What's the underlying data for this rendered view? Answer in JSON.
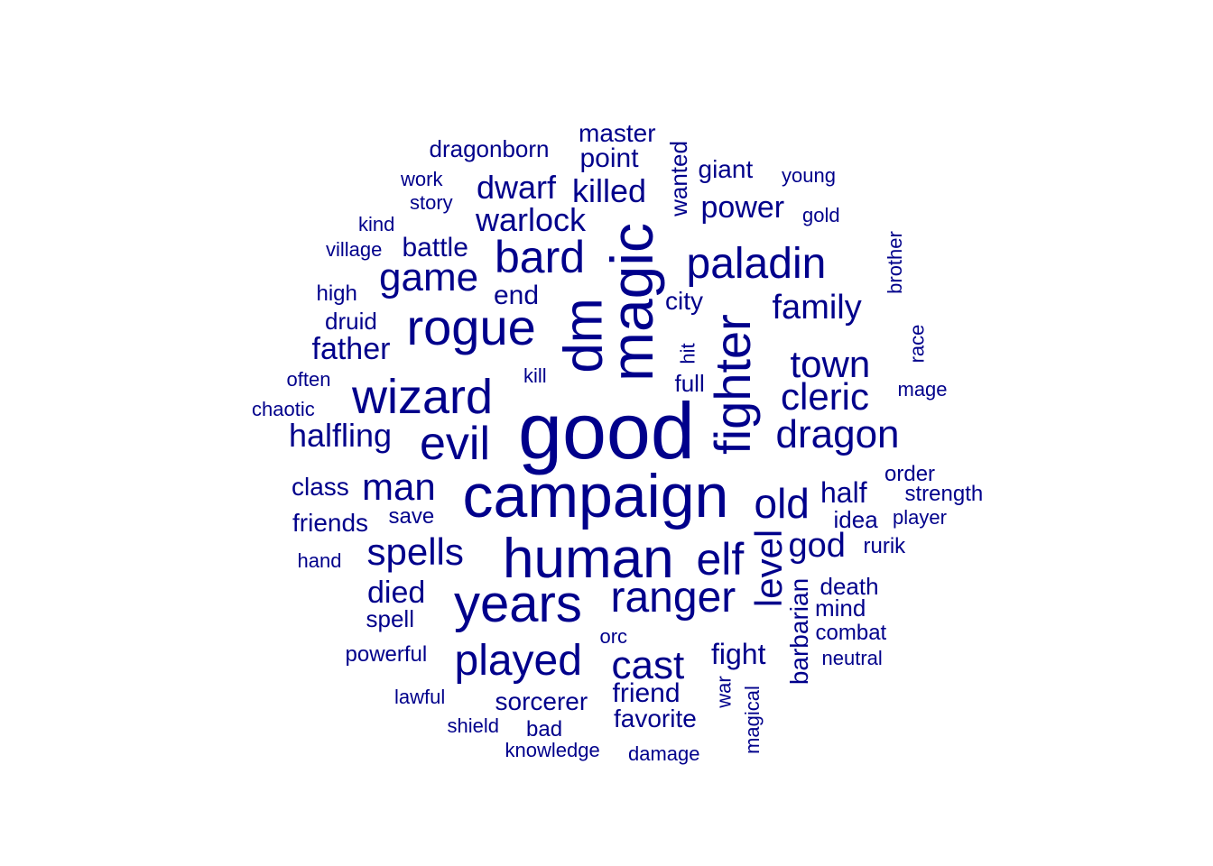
{
  "text_color": "#00008B",
  "background_color": "#FFFFFF",
  "words": [
    {
      "text": "good",
      "weight": 88,
      "rotated": false
    },
    {
      "text": "campaign",
      "weight": 68,
      "rotated": false
    },
    {
      "text": "magic",
      "weight": 66,
      "rotated": true
    },
    {
      "text": "dm",
      "weight": 60,
      "rotated": true
    },
    {
      "text": "human",
      "weight": 62,
      "rotated": false
    },
    {
      "text": "fighter",
      "weight": 56,
      "rotated": true
    },
    {
      "text": "rogue",
      "weight": 56,
      "rotated": false
    },
    {
      "text": "years",
      "weight": 58,
      "rotated": false
    },
    {
      "text": "wizard",
      "weight": 54,
      "rotated": false
    },
    {
      "text": "evil",
      "weight": 52,
      "rotated": false
    },
    {
      "text": "played",
      "weight": 48,
      "rotated": false
    },
    {
      "text": "ranger",
      "weight": 48,
      "rotated": false
    },
    {
      "text": "bard",
      "weight": 50,
      "rotated": false
    },
    {
      "text": "paladin",
      "weight": 48,
      "rotated": false
    },
    {
      "text": "elf",
      "weight": 50,
      "rotated": false
    },
    {
      "text": "game",
      "weight": 44,
      "rotated": false
    },
    {
      "text": "spells",
      "weight": 42,
      "rotated": false
    },
    {
      "text": "dragon",
      "weight": 44,
      "rotated": false
    },
    {
      "text": "old",
      "weight": 46,
      "rotated": false
    },
    {
      "text": "man",
      "weight": 42,
      "rotated": false
    },
    {
      "text": "cast",
      "weight": 44,
      "rotated": false
    },
    {
      "text": "level",
      "weight": 42,
      "rotated": true
    },
    {
      "text": "town",
      "weight": 42,
      "rotated": false
    },
    {
      "text": "cleric",
      "weight": 42,
      "rotated": false
    },
    {
      "text": "family",
      "weight": 38,
      "rotated": false
    },
    {
      "text": "god",
      "weight": 38,
      "rotated": false
    },
    {
      "text": "killed",
      "weight": 36,
      "rotated": false
    },
    {
      "text": "warlock",
      "weight": 36,
      "rotated": false
    },
    {
      "text": "dwarf",
      "weight": 36,
      "rotated": false
    },
    {
      "text": "power",
      "weight": 34,
      "rotated": false
    },
    {
      "text": "halfling",
      "weight": 36,
      "rotated": false
    },
    {
      "text": "father",
      "weight": 34,
      "rotated": false
    },
    {
      "text": "died",
      "weight": 34,
      "rotated": false
    },
    {
      "text": "half",
      "weight": 32,
      "rotated": false
    },
    {
      "text": "fight",
      "weight": 32,
      "rotated": false
    },
    {
      "text": "barbarian",
      "weight": 28,
      "rotated": true
    },
    {
      "text": "battle",
      "weight": 30,
      "rotated": false
    },
    {
      "text": "end",
      "weight": 30,
      "rotated": false
    },
    {
      "text": "sorcerer",
      "weight": 28,
      "rotated": false
    },
    {
      "text": "friend",
      "weight": 30,
      "rotated": false
    },
    {
      "text": "favorite",
      "weight": 28,
      "rotated": false
    },
    {
      "text": "friends",
      "weight": 28,
      "rotated": false
    },
    {
      "text": "class",
      "weight": 28,
      "rotated": false
    },
    {
      "text": "point",
      "weight": 30,
      "rotated": false
    },
    {
      "text": "master",
      "weight": 28,
      "rotated": false
    },
    {
      "text": "dragonborn",
      "weight": 26,
      "rotated": false
    },
    {
      "text": "giant",
      "weight": 28,
      "rotated": false
    },
    {
      "text": "wanted",
      "weight": 26,
      "rotated": true
    },
    {
      "text": "city",
      "weight": 28,
      "rotated": false
    },
    {
      "text": "full",
      "weight": 26,
      "rotated": false
    },
    {
      "text": "idea",
      "weight": 26,
      "rotated": false
    },
    {
      "text": "death",
      "weight": 26,
      "rotated": false
    },
    {
      "text": "mind",
      "weight": 26,
      "rotated": false
    },
    {
      "text": "spell",
      "weight": 26,
      "rotated": false
    },
    {
      "text": "save",
      "weight": 24,
      "rotated": false
    },
    {
      "text": "high",
      "weight": 24,
      "rotated": false
    },
    {
      "text": "druid",
      "weight": 26,
      "rotated": false
    },
    {
      "text": "order",
      "weight": 24,
      "rotated": false
    },
    {
      "text": "strength",
      "weight": 24,
      "rotated": false
    },
    {
      "text": "player",
      "weight": 22,
      "rotated": false
    },
    {
      "text": "rurik",
      "weight": 24,
      "rotated": false
    },
    {
      "text": "combat",
      "weight": 24,
      "rotated": false
    },
    {
      "text": "neutral",
      "weight": 22,
      "rotated": false
    },
    {
      "text": "mage",
      "weight": 22,
      "rotated": false
    },
    {
      "text": "brother",
      "weight": 22,
      "rotated": true
    },
    {
      "text": "race",
      "weight": 22,
      "rotated": true
    },
    {
      "text": "hit",
      "weight": 22,
      "rotated": true
    },
    {
      "text": "kill",
      "weight": 22,
      "rotated": false
    },
    {
      "text": "often",
      "weight": 22,
      "rotated": false
    },
    {
      "text": "chaotic",
      "weight": 22,
      "rotated": false
    },
    {
      "text": "hand",
      "weight": 22,
      "rotated": false
    },
    {
      "text": "powerful",
      "weight": 24,
      "rotated": false
    },
    {
      "text": "lawful",
      "weight": 22,
      "rotated": false
    },
    {
      "text": "shield",
      "weight": 22,
      "rotated": false
    },
    {
      "text": "bad",
      "weight": 24,
      "rotated": false
    },
    {
      "text": "knowledge",
      "weight": 22,
      "rotated": false
    },
    {
      "text": "damage",
      "weight": 22,
      "rotated": false
    },
    {
      "text": "orc",
      "weight": 22,
      "rotated": false
    },
    {
      "text": "war",
      "weight": 22,
      "rotated": true
    },
    {
      "text": "magical",
      "weight": 22,
      "rotated": true
    },
    {
      "text": "kind",
      "weight": 22,
      "rotated": false
    },
    {
      "text": "village",
      "weight": 22,
      "rotated": false
    },
    {
      "text": "work",
      "weight": 22,
      "rotated": false
    },
    {
      "text": "story",
      "weight": 22,
      "rotated": false
    },
    {
      "text": "young",
      "weight": 22,
      "rotated": false
    },
    {
      "text": "gold",
      "weight": 22,
      "rotated": false
    }
  ]
}
